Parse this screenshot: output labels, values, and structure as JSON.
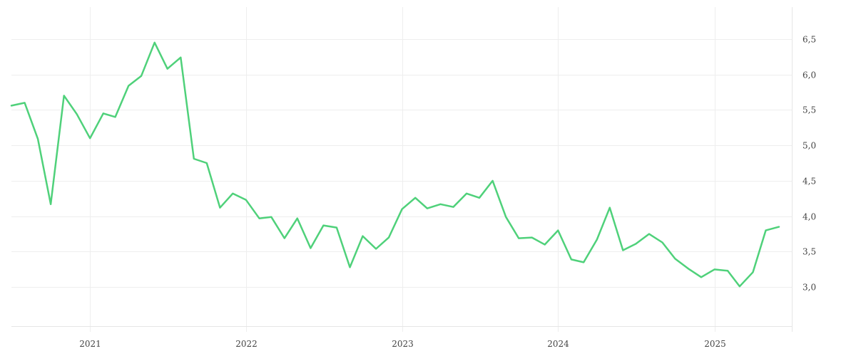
{
  "chart_data": {
    "type": "line",
    "title": "",
    "xlabel": "",
    "ylabel": "",
    "xlim": [
      "2020-07-01",
      "2025-07-01"
    ],
    "ylim": [
      2.45,
      6.95
    ],
    "x_ticks": [
      "2021-01-01",
      "2022-01-01",
      "2023-01-01",
      "2024-01-01",
      "2025-01-01"
    ],
    "x_tick_labels": [
      "2021",
      "2022",
      "2023",
      "2024",
      "2025"
    ],
    "y_ticks": [
      3.0,
      3.5,
      4.0,
      4.5,
      5.0,
      5.5,
      6.0,
      6.5
    ],
    "y_tick_labels": [
      "3,0",
      "3,5",
      "4,0",
      "4,5",
      "5,0",
      "5,5",
      "6,0",
      "6,5"
    ],
    "y_axis_position": "right",
    "grid": true,
    "color": "#4fd17a",
    "x": [
      "2020-07",
      "2020-08",
      "2020-09",
      "2020-10",
      "2020-11",
      "2020-12",
      "2021-01",
      "2021-02",
      "2021-03",
      "2021-04",
      "2021-05",
      "2021-06",
      "2021-07",
      "2021-08",
      "2021-09",
      "2021-10",
      "2021-11",
      "2021-12",
      "2022-01",
      "2022-02",
      "2022-03",
      "2022-04",
      "2022-05",
      "2022-06",
      "2022-07",
      "2022-08",
      "2022-09",
      "2022-10",
      "2022-11",
      "2022-12",
      "2023-01",
      "2023-02",
      "2023-03",
      "2023-04",
      "2023-05",
      "2023-06",
      "2023-07",
      "2023-08",
      "2023-09",
      "2023-10",
      "2023-11",
      "2023-12",
      "2024-01",
      "2024-02",
      "2024-03",
      "2024-04",
      "2024-05",
      "2024-06",
      "2024-07",
      "2024-08",
      "2024-09",
      "2024-10",
      "2024-11",
      "2024-12",
      "2025-01",
      "2025-02",
      "2025-03",
      "2025-04",
      "2025-05",
      "2025-06"
    ],
    "values": [
      5.56,
      5.6,
      5.09,
      4.17,
      5.7,
      5.44,
      5.1,
      5.45,
      5.4,
      5.84,
      5.98,
      6.45,
      6.08,
      6.24,
      4.81,
      4.75,
      4.12,
      4.32,
      4.23,
      3.97,
      3.99,
      3.69,
      3.97,
      3.55,
      3.87,
      3.84,
      3.28,
      3.72,
      3.54,
      3.7,
      4.1,
      4.26,
      4.11,
      4.17,
      4.13,
      4.32,
      4.26,
      4.5,
      3.99,
      3.69,
      3.7,
      3.6,
      3.8,
      3.39,
      3.35,
      3.67,
      4.12,
      3.52,
      3.61,
      3.75,
      3.63,
      3.4,
      3.26,
      3.14,
      3.25,
      3.23,
      3.01,
      3.21,
      3.8,
      3.85
    ]
  }
}
